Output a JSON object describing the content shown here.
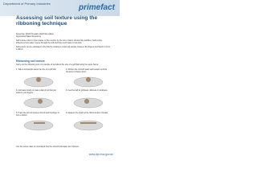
{
  "header": {
    "org": "Department of Primary Industries",
    "brand": "primefact"
  },
  "title": "Assessing soil texture using the ribboning technique",
  "meta": [
    "December 2014   Primefact 1402   First edition",
    "Agricultural Water Resources"
  ],
  "intro": [
    "Soil texture refers to how coarse or fine a soil is by the mix of sand, silt and clay particles. Soil texture influences how water moves through the soil and how much water it can hold.",
    "Soil texture can be estimated in the field by working a moist soil sample between the fingers and thumb to form a ribbon."
  ],
  "section": "Ribboning soil texture",
  "lead": "Carry out the ribboning test on a sample of soil about the size of a golf ball using the steps below.",
  "steps": [
    "1. Take a soil sample about the size of a golf ball.",
    "2. Moisten the soil with water and knead it until the structure is broken down.",
    "3. Add water slowly to make a ball of soil that just sticks to your fingers.",
    "4. Feel the ball for grittiness, silkiness or stickiness.",
    "5. Press the soil out between thumb and forefinger to form a ribbon.",
    "6. Measure the length of the ribbon before it breaks."
  ],
  "footer": "Use the texture class to understand how the soil will hold water and nutrients.",
  "url": "www.dpi.nsw.gov.au"
}
